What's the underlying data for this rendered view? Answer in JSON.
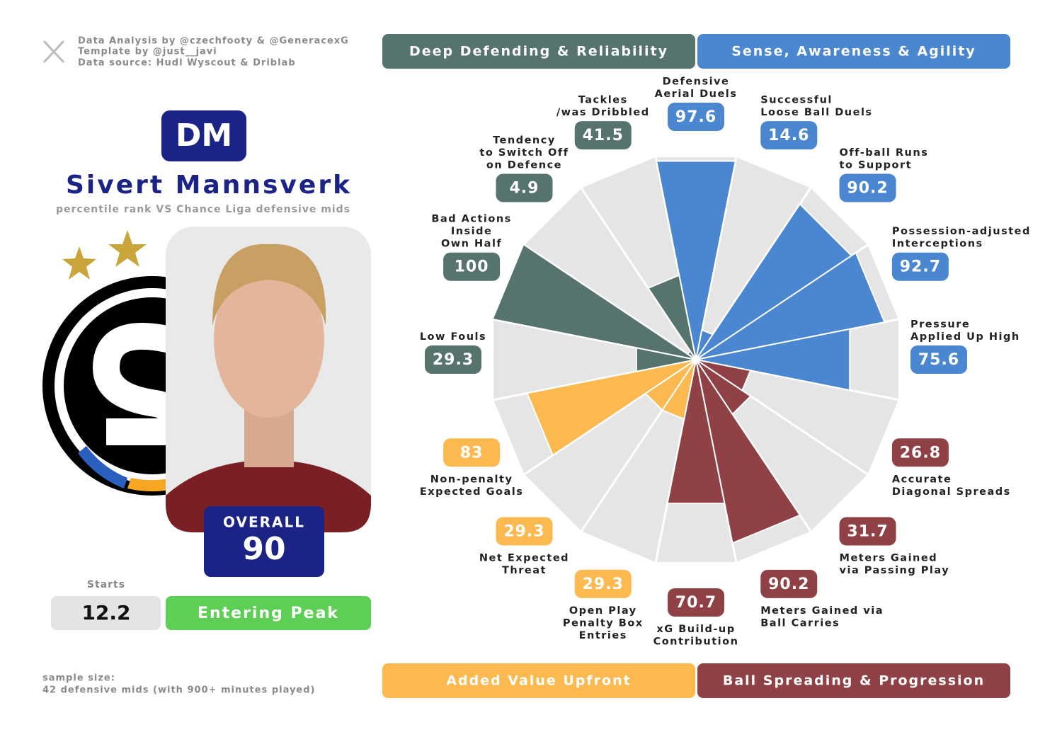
{
  "header": {
    "credits": [
      "Data Analysis by @czechfooty & @GeneracexG",
      "Template by @just__javi",
      "Data source: Hudl Wyscout & Driblab"
    ]
  },
  "player": {
    "position": "DM",
    "name": "Sivert Mannsverk",
    "subtitle": "percentile rank VS Chance Liga defensive mids",
    "overall_label": "OVERALL",
    "overall": 90,
    "starts_label": "Starts",
    "starts": 12.2,
    "stage": "Entering Peak"
  },
  "footer": {
    "sample": [
      "sample size:",
      "42 defensive mids (with 900+ minutes played)"
    ]
  },
  "chart_data": {
    "type": "pizza",
    "rlim": [
      0,
      100
    ],
    "series": [
      {
        "name": "Sense, Awareness & Agility",
        "color": "#4a87d0",
        "categories": [
          [
            "Defensive",
            "Aerial Duels"
          ],
          [
            "Successful",
            "Loose Ball Duels"
          ],
          [
            "Off-ball Runs",
            "to Support"
          ],
          [
            "Possession-adjusted",
            "Interceptions"
          ],
          [
            "Pressure",
            "Applied Up High"
          ]
        ],
        "values": [
          97.6,
          14.6,
          90.2,
          92.7,
          75.6
        ]
      },
      {
        "name": "Ball Spreading & Progression",
        "color": "#8f4145",
        "categories": [
          [
            "Accurate",
            "Diagonal Spreads"
          ],
          [
            "Meters Gained",
            "via Passing Play"
          ],
          [
            "Meters Gained via",
            "Ball Carries"
          ],
          [
            "xG Build-up",
            "Contribution"
          ]
        ],
        "values": [
          26.8,
          31.7,
          90.2,
          70.7
        ]
      },
      {
        "name": "Added Value Upfront",
        "color": "#fbb950",
        "categories": [
          [
            "Open Play",
            "Penalty Box",
            "Entries"
          ],
          [
            "Net Expected",
            "Threat"
          ],
          [
            "Non-penalty",
            "Expected Goals"
          ]
        ],
        "values": [
          29.3,
          29.3,
          83
        ]
      },
      {
        "name": "Deep Defending & Reliability",
        "color": "#56736d",
        "categories": [
          [
            "Low Fouls"
          ],
          [
            "Bad Actions",
            "Inside",
            "Own Half"
          ],
          [
            "Tendency",
            "to Switch Off",
            "on Defence"
          ],
          [
            "Tackles",
            "/was Dribbled"
          ]
        ],
        "values": [
          29.3,
          100,
          4.9,
          41.5
        ]
      }
    ]
  }
}
